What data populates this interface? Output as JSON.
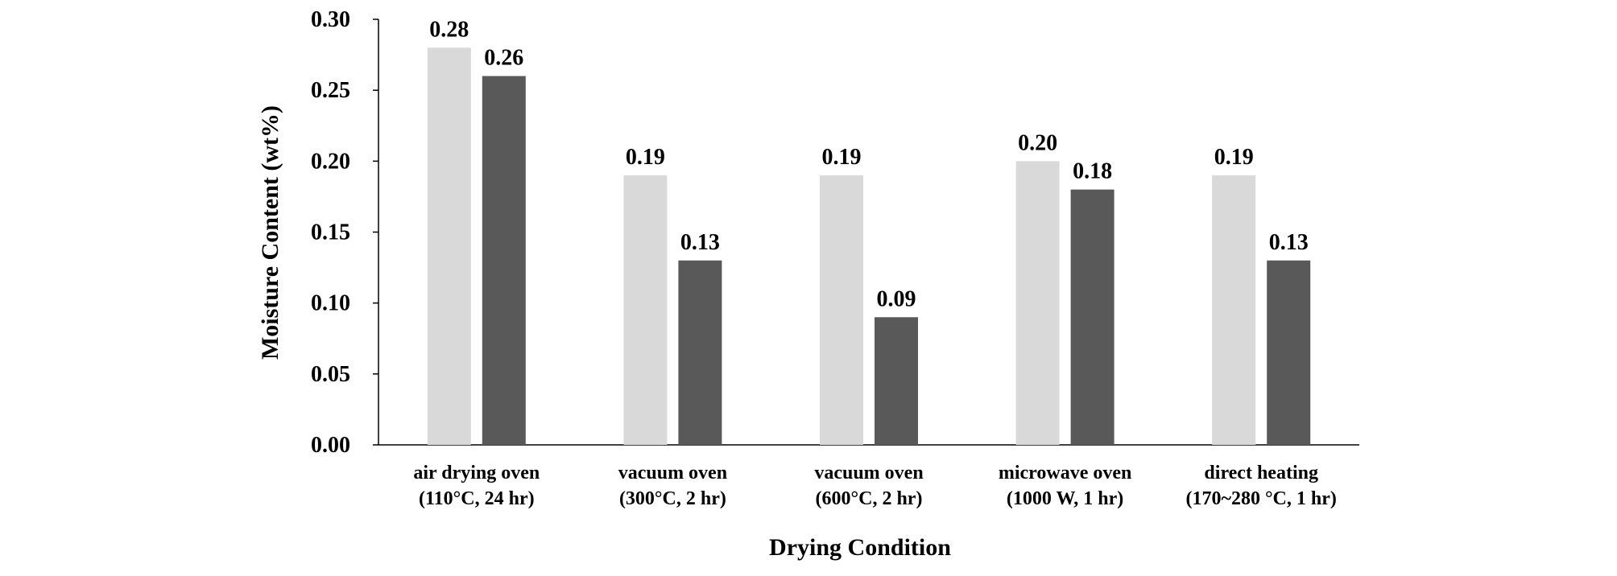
{
  "chart_data": {
    "type": "bar",
    "title": "",
    "xlabel": "Drying Condition",
    "ylabel": "Moisture Content (wt%)",
    "ylim": [
      0,
      0.3
    ],
    "yticks": [
      "0.00",
      "0.05",
      "0.10",
      "0.15",
      "0.20",
      "0.25",
      "0.30"
    ],
    "categories": [
      [
        "air drying oven",
        "(110°C, 24 hr)"
      ],
      [
        "vacuum oven",
        "(300°C, 2 hr)"
      ],
      [
        "vacuum oven",
        "(600°C, 2 hr)"
      ],
      [
        "microwave oven",
        "(1000 W, 1 hr)"
      ],
      [
        "direct heating",
        "(170~280 °C, 1 hr)"
      ]
    ],
    "series": [
      {
        "name": "series 1",
        "color": "#d9d9d9",
        "values": [
          0.28,
          0.19,
          0.19,
          0.2,
          0.19
        ],
        "labels": [
          "0.28",
          "0.19",
          "0.19",
          "0.20",
          "0.19"
        ]
      },
      {
        "name": "series 2",
        "color": "#595959",
        "values": [
          0.26,
          0.13,
          0.09,
          0.18,
          0.13
        ],
        "labels": [
          "0.26",
          "0.13",
          "0.09",
          "0.18",
          "0.13"
        ]
      }
    ],
    "grid": false,
    "legend": "none"
  }
}
